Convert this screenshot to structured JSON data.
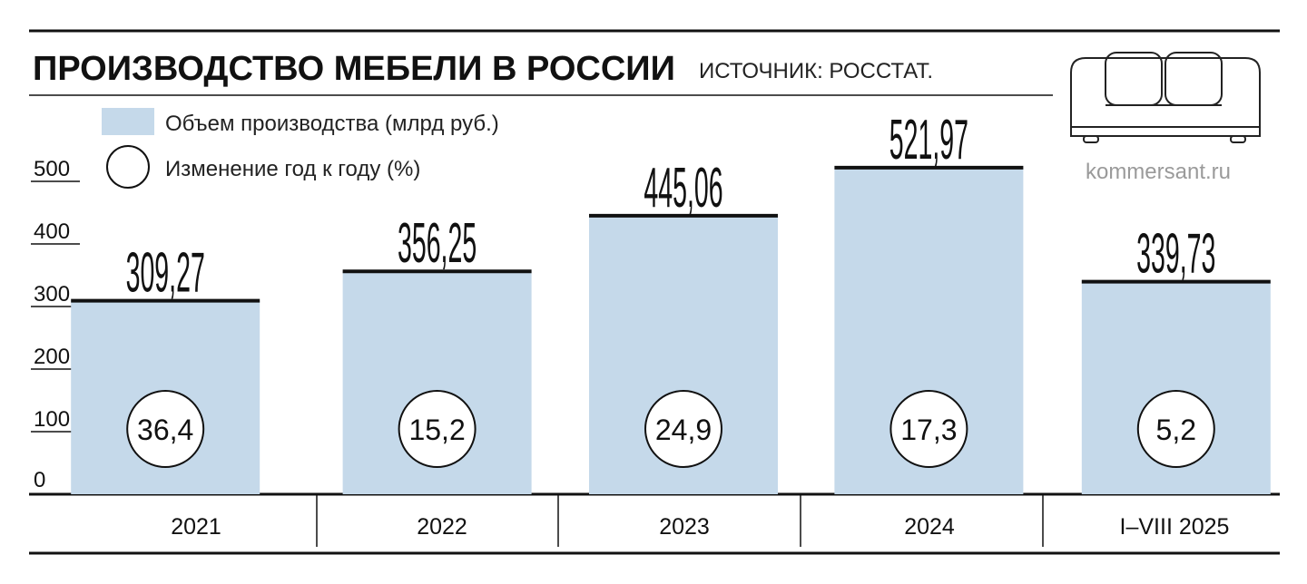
{
  "header": {
    "title": "ПРОИЗВОДСТВО МЕБЕЛИ В РОССИИ",
    "source": "ИСТОЧНИК: РОССТАТ."
  },
  "brand": {
    "logo_icon": "sofa-icon",
    "site": "kommersant.ru"
  },
  "legend": {
    "bar_label": "Объем производства (млрд руб.)",
    "circle_label": "Изменение год к году (%)"
  },
  "colors": {
    "bar": "#c5d9ea",
    "ink": "#111111",
    "muted": "#9a9a9a"
  },
  "chart_data": {
    "type": "bar",
    "categories": [
      "2021",
      "2022",
      "2023",
      "2024",
      "I–VIII 2025"
    ],
    "series": [
      {
        "name": "Объем производства (млрд руб.)",
        "values": [
          309.27,
          356.25,
          445.06,
          521.97,
          339.73
        ]
      },
      {
        "name": "Изменение год к году (%)",
        "values": [
          36.4,
          15.2,
          24.9,
          17.3,
          5.2
        ]
      }
    ],
    "value_labels": [
      "309,27",
      "356,25",
      "445,06",
      "521,97",
      "339,73"
    ],
    "change_labels": [
      "36,4",
      "15,2",
      "24,9",
      "17,3",
      "5,2"
    ],
    "yticks": [
      "0",
      "100",
      "200",
      "300",
      "400",
      "500"
    ],
    "ytick_values": [
      0,
      100,
      200,
      300,
      400,
      500
    ],
    "ylim": [
      0,
      500
    ]
  }
}
